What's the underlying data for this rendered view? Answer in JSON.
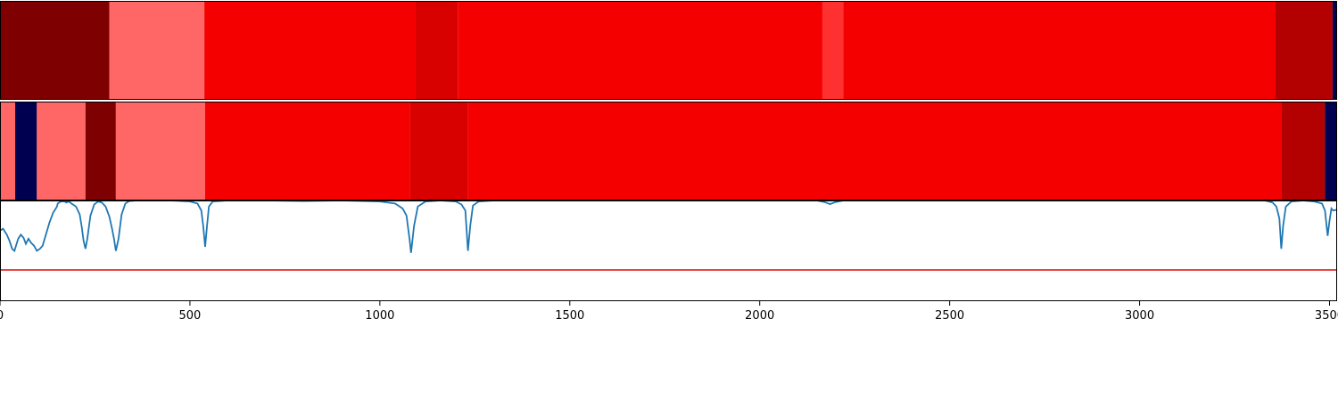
{
  "chart_data": {
    "type": "heatmap",
    "title": "",
    "xlabel": "",
    "ylabel": "",
    "xlim": [
      0,
      3520
    ],
    "xticks": [
      0,
      500,
      1000,
      1500,
      2000,
      2500,
      3000,
      3500
    ],
    "xtick_labels": [
      "0",
      "500",
      "1000",
      "1500",
      "2000",
      "2500",
      "3000",
      "3500"
    ],
    "colors": {
      "dark_red": "#7f0000",
      "light_red": "#ff6666",
      "red": "#f50000",
      "mid_red": "#d90000",
      "bright_red": "#ff3030",
      "deep_red": "#b30000",
      "navy": "#000050",
      "line": "#1f77b4",
      "threshold": "#e41a1c"
    },
    "tracks": [
      {
        "segments": [
          {
            "start": 0,
            "end": 288,
            "color": "dark_red"
          },
          {
            "start": 288,
            "end": 538,
            "color": "light_red"
          },
          {
            "start": 538,
            "end": 1093,
            "color": "red"
          },
          {
            "start": 1093,
            "end": 1205,
            "color": "mid_red"
          },
          {
            "start": 1205,
            "end": 2165,
            "color": "red"
          },
          {
            "start": 2165,
            "end": 2220,
            "color": "bright_red"
          },
          {
            "start": 2220,
            "end": 3358,
            "color": "red"
          },
          {
            "start": 3358,
            "end": 3508,
            "color": "deep_red"
          },
          {
            "start": 3508,
            "end": 3520,
            "color": "navy"
          }
        ]
      },
      {
        "segments": [
          {
            "start": 0,
            "end": 40,
            "color": "light_red"
          },
          {
            "start": 40,
            "end": 97,
            "color": "navy"
          },
          {
            "start": 97,
            "end": 225,
            "color": "light_red"
          },
          {
            "start": 225,
            "end": 305,
            "color": "dark_red"
          },
          {
            "start": 305,
            "end": 540,
            "color": "light_red"
          },
          {
            "start": 540,
            "end": 1080,
            "color": "red"
          },
          {
            "start": 1080,
            "end": 1232,
            "color": "mid_red"
          },
          {
            "start": 1232,
            "end": 3373,
            "color": "red"
          },
          {
            "start": 3373,
            "end": 3488,
            "color": "deep_red"
          },
          {
            "start": 3488,
            "end": 3520,
            "color": "navy"
          }
        ]
      }
    ],
    "line_series": {
      "ylim": [
        0,
        1
      ],
      "threshold": 0.31,
      "x": [
        0,
        8,
        18,
        25,
        32,
        38,
        42,
        48,
        55,
        62,
        68,
        75,
        82,
        90,
        97,
        105,
        112,
        120,
        130,
        140,
        150,
        152,
        160,
        170,
        175,
        180,
        185,
        188,
        200,
        210,
        215,
        220,
        225,
        230,
        238,
        248,
        258,
        268,
        278,
        288,
        295,
        300,
        305,
        312,
        320,
        330,
        340,
        360,
        400,
        450,
        500,
        520,
        530,
        535,
        540,
        545,
        550,
        560,
        600,
        700,
        800,
        900,
        1000,
        1040,
        1060,
        1070,
        1078,
        1082,
        1090,
        1100,
        1120,
        1160,
        1200,
        1215,
        1225,
        1232,
        1238,
        1245,
        1260,
        1300,
        1500,
        1700,
        2000,
        2100,
        2150,
        2170,
        2185,
        2200,
        2220,
        2250,
        2400,
        2600,
        2800,
        3000,
        3200,
        3330,
        3350,
        3360,
        3368,
        3373,
        3378,
        3385,
        3400,
        3430,
        3460,
        3480,
        3488,
        3495,
        3500,
        3505,
        3510,
        3520
      ],
      "y": [
        0.7,
        0.72,
        0.66,
        0.6,
        0.52,
        0.5,
        0.55,
        0.62,
        0.66,
        0.63,
        0.57,
        0.62,
        0.58,
        0.55,
        0.5,
        0.52,
        0.55,
        0.65,
        0.78,
        0.88,
        0.94,
        0.97,
        0.99,
        0.99,
        0.98,
        0.99,
        0.98,
        0.97,
        0.94,
        0.86,
        0.74,
        0.6,
        0.52,
        0.62,
        0.85,
        0.96,
        0.99,
        0.98,
        0.94,
        0.84,
        0.72,
        0.62,
        0.5,
        0.62,
        0.86,
        0.97,
        0.995,
        1.0,
        1.0,
        1.0,
        0.99,
        0.97,
        0.9,
        0.75,
        0.54,
        0.75,
        0.94,
        0.99,
        1.0,
        1.0,
        0.995,
        1.0,
        0.99,
        0.97,
        0.92,
        0.85,
        0.62,
        0.48,
        0.75,
        0.94,
        0.99,
        1.0,
        0.99,
        0.96,
        0.9,
        0.5,
        0.75,
        0.95,
        0.99,
        1.0,
        1.0,
        1.0,
        1.0,
        1.0,
        1.0,
        0.985,
        0.965,
        0.985,
        1.0,
        1.0,
        1.0,
        1.0,
        1.0,
        1.0,
        1.0,
        1.0,
        0.98,
        0.94,
        0.82,
        0.52,
        0.75,
        0.94,
        0.99,
        1.0,
        0.99,
        0.97,
        0.9,
        0.65,
        0.8,
        0.92,
        0.9,
        0.91,
        0.9
      ]
    }
  }
}
